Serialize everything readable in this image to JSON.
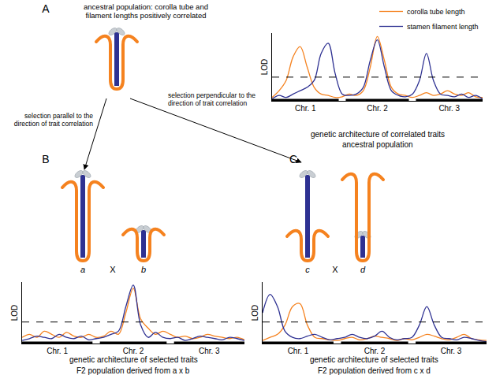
{
  "diagram": {
    "panel_labels": [
      "A",
      "B",
      "C"
    ],
    "ancestral_caption": [
      "ancestral population: corolla tube and",
      "filament lengths positively correlated"
    ],
    "arrows": [
      {
        "label": [
          "selection parallel to the",
          "direction of trait correlation"
        ]
      },
      {
        "label": [
          "selection perpendicular to the",
          "direction of trait correlation"
        ]
      }
    ],
    "crosses": [
      {
        "left": "a",
        "symbol": "X",
        "right": "b"
      },
      {
        "left": "c",
        "symbol": "X",
        "right": "d"
      }
    ]
  },
  "chart_data": [
    {
      "type": "line",
      "title": "genetic architecture of correlated traits",
      "subtitle": "ancestral population",
      "y_label": "LOD",
      "legend": "top right",
      "tick_labels": "x",
      "grid": false,
      "xlim": [
        0,
        300
      ],
      "ylim": [
        0,
        10
      ],
      "xticks": [
        {
          "value": 47.5,
          "label": "Chr. 1"
        },
        {
          "value": 150,
          "label": "Chr. 2"
        },
        {
          "value": 252.5,
          "label": "Chr. 3"
        }
      ],
      "chromosomes": [
        [
          0,
          95
        ],
        [
          105,
          195
        ],
        [
          205,
          300
        ]
      ],
      "threshold": 3.5,
      "x": [
        0,
        10,
        20,
        30,
        40,
        50,
        60,
        70,
        80,
        90,
        100,
        110,
        120,
        130,
        140,
        150,
        160,
        170,
        180,
        190,
        200,
        210,
        220,
        230,
        240,
        250,
        260,
        270,
        280,
        290,
        300
      ],
      "series": [
        {
          "name": "corolla tube length",
          "color": "#f5821f",
          "values": [
            0.5,
            1.5,
            3,
            6.5,
            8,
            5,
            2,
            1,
            0.8,
            0.5,
            0.6,
            1,
            0.8,
            1.5,
            5,
            9.5,
            6,
            2,
            1,
            0.8,
            0.5,
            0.8,
            1.2,
            0.8,
            1,
            1.5,
            1,
            0.8,
            1.2,
            0.6,
            0.5
          ]
        },
        {
          "name": "stamen filament length",
          "color": "#2e3192",
          "values": [
            0.3,
            0.8,
            0.5,
            1,
            1.5,
            2,
            3,
            7,
            8.5,
            4,
            1,
            0.8,
            1,
            2,
            6,
            9,
            5,
            1.5,
            0.8,
            0.6,
            1,
            3,
            7,
            3,
            1,
            0.8,
            0.6,
            1,
            0.5,
            0.8,
            0.3
          ]
        }
      ]
    },
    {
      "type": "line",
      "title": "genetic architecture of selected traits",
      "subtitle": "F2 population derived from a x b",
      "y_label": "LOD",
      "tick_labels": "x",
      "grid": false,
      "xlim": [
        0,
        300
      ],
      "ylim": [
        0,
        10
      ],
      "xticks": [
        {
          "value": 47.5,
          "label": "Chr. 1"
        },
        {
          "value": 150,
          "label": "Chr. 2"
        },
        {
          "value": 252.5,
          "label": "Chr. 3"
        }
      ],
      "chromosomes": [
        [
          0,
          95
        ],
        [
          105,
          195
        ],
        [
          205,
          300
        ]
      ],
      "threshold": 3.5,
      "x": [
        0,
        10,
        20,
        30,
        40,
        50,
        60,
        70,
        80,
        90,
        100,
        110,
        120,
        130,
        140,
        150,
        160,
        170,
        180,
        190,
        200,
        210,
        220,
        230,
        240,
        250,
        260,
        270,
        280,
        290,
        300
      ],
      "series": [
        {
          "color": "#f5821f",
          "values": [
            1,
            1.5,
            1,
            2,
            1.5,
            1,
            1.8,
            1.2,
            1,
            1.5,
            1,
            1.2,
            2,
            1.5,
            5,
            9,
            4,
            2.5,
            1.5,
            2,
            1.5,
            1,
            1.2,
            0.8,
            1,
            1.5,
            1.2,
            1,
            0.8,
            1,
            0.6
          ]
        },
        {
          "color": "#2e3192",
          "values": [
            0.5,
            0.8,
            1.2,
            1,
            0.8,
            1.5,
            1,
            0.8,
            1.2,
            0.6,
            0.8,
            1,
            1.5,
            2,
            6,
            9.5,
            3,
            1,
            1.8,
            1,
            0.8,
            1,
            0.5,
            0.8,
            1.2,
            1,
            0.8,
            0.6,
            1,
            0.8,
            0.5
          ]
        }
      ]
    },
    {
      "type": "line",
      "title": "genetic architecture of selected traits",
      "subtitle": "F2 population derived from c x d",
      "y_label": "LOD",
      "tick_labels": "x",
      "grid": false,
      "xlim": [
        0,
        300
      ],
      "ylim": [
        0,
        10
      ],
      "xticks": [
        {
          "value": 47.5,
          "label": "Chr. 1"
        },
        {
          "value": 150,
          "label": "Chr. 2"
        },
        {
          "value": 252.5,
          "label": "Chr. 3"
        }
      ],
      "chromosomes": [
        [
          0,
          95
        ],
        [
          105,
          195
        ],
        [
          205,
          300
        ]
      ],
      "threshold": 3.5,
      "x": [
        0,
        10,
        20,
        30,
        40,
        50,
        60,
        70,
        80,
        90,
        100,
        110,
        120,
        130,
        140,
        150,
        160,
        170,
        180,
        190,
        200,
        210,
        220,
        230,
        240,
        250,
        260,
        270,
        280,
        290,
        300
      ],
      "series": [
        {
          "color": "#f5821f",
          "values": [
            0.5,
            1,
            1.5,
            3,
            6,
            6.5,
            3,
            1,
            0.8,
            0.6,
            0.5,
            0.8,
            1,
            0.6,
            0.8,
            1.2,
            1,
            0.8,
            0.5,
            0.8,
            0.6,
            1,
            1.5,
            1.2,
            0.8,
            0.6,
            1,
            1.5,
            0.8,
            0.6,
            0.5
          ]
        },
        {
          "color": "#2e3192",
          "values": [
            5,
            8,
            6,
            2,
            1,
            0.8,
            1.2,
            1.5,
            1,
            0.6,
            0.8,
            1,
            1.5,
            1,
            0.8,
            1.2,
            2,
            1,
            0.6,
            0.8,
            1,
            3,
            6,
            3,
            1,
            0.8,
            0.6,
            1,
            0.8,
            0.5,
            0.3
          ]
        }
      ]
    }
  ]
}
